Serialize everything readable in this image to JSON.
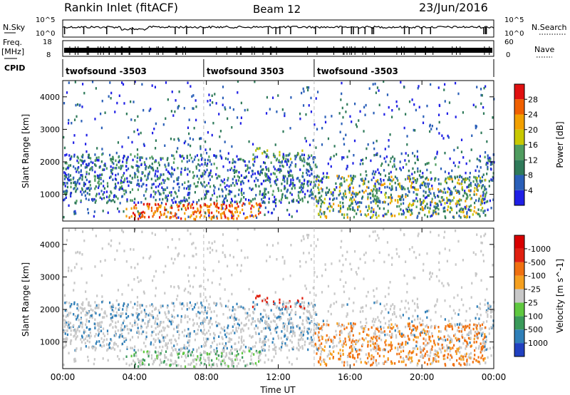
{
  "header": {
    "station": "Rankin Inlet (fitACF)",
    "beam": "Beam 12",
    "date": "23/Jun/2016"
  },
  "side_labels": {
    "nsky": "N.Sky",
    "freq": "Freq.",
    "freq_unit": "[MHz]",
    "cpid": "CPID",
    "nsearch": "N.Search",
    "nave": "Nave"
  },
  "noise_panel": {
    "left_ticks": [
      "10^5",
      "10^0"
    ],
    "right_ticks": [
      "10^5",
      "10^0"
    ]
  },
  "freq_panel": {
    "left_ticks": [
      "18",
      "8"
    ],
    "right_ticks": [
      "60",
      "0"
    ]
  },
  "cpid_segments": [
    {
      "label": "twofsound -3503",
      "start_hour": 0,
      "end_hour": 7.85
    },
    {
      "label": "twofsound 3503",
      "start_hour": 7.85,
      "end_hour": 14.0
    },
    {
      "label": "twofsound -3503",
      "start_hour": 14.0,
      "end_hour": 24
    }
  ],
  "chart_data": [
    {
      "type": "heatmap",
      "xlabel": "",
      "ylabel": "Slant Range [km]",
      "xlim": [
        0,
        24
      ],
      "ylim": [
        180,
        4500
      ],
      "yticks": [
        1000,
        2000,
        3000,
        4000
      ],
      "colorbar": {
        "label": "Power [dB]",
        "ticks": [
          4,
          8,
          12,
          16,
          20,
          24,
          28
        ],
        "range": [
          0,
          30
        ],
        "colors": [
          "#1f1fe6",
          "#2a5fb8",
          "#2f7a5a",
          "#4f9c5f",
          "#c8c800",
          "#f2a000",
          "#f06000",
          "#e01010"
        ]
      }
    },
    {
      "type": "heatmap",
      "xlabel": "Time UT",
      "ylabel": "Slant Range [km]",
      "xlim": [
        0,
        24
      ],
      "ylim": [
        180,
        4500
      ],
      "yticks": [
        1000,
        2000,
        3000,
        4000
      ],
      "xticks": [
        "00:00",
        "04:00",
        "08:00",
        "12:00",
        "16:00",
        "20:00",
        "00:00"
      ],
      "colorbar": {
        "label": "Velocity [m s^-1]",
        "ticks": [
          "1000",
          "500",
          "100",
          "25",
          "-25",
          "-100",
          "-500",
          "-1000"
        ],
        "colors": [
          "#2040c0",
          "#2f7fb8",
          "#3a9a5a",
          "#5fc840",
          "#c8c8c8",
          "#f5a020",
          "#f07010",
          "#e02010",
          "#d80000"
        ]
      }
    }
  ]
}
